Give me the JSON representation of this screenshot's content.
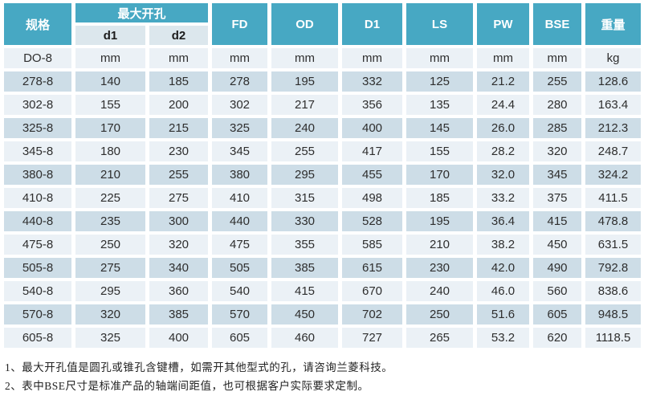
{
  "colors": {
    "header_bg": "#47A8C3",
    "header_text": "#FFFFFF",
    "subheader_bg": "#DCE7ED",
    "row_light": "#EBF1F6",
    "row_dark": "#CDDDE7",
    "cell_text": "#2E2E2E",
    "note_text": "#222222"
  },
  "table": {
    "header": {
      "spec": "规格",
      "max_opening": "最大开孔",
      "sub_d1": "d1",
      "sub_d2": "d2",
      "merged_cols": [
        "FD",
        "OD",
        "D1",
        "LS",
        "PW",
        "BSE",
        "重量"
      ]
    },
    "units_row": [
      "DO-8",
      "mm",
      "mm",
      "mm",
      "mm",
      "mm",
      "mm",
      "mm",
      "mm",
      "kg"
    ],
    "rows": [
      [
        "278-8",
        "140",
        "185",
        "278",
        "195",
        "332",
        "125",
        "21.2",
        "255",
        "128.6"
      ],
      [
        "302-8",
        "155",
        "200",
        "302",
        "217",
        "356",
        "135",
        "24.4",
        "280",
        "163.4"
      ],
      [
        "325-8",
        "170",
        "215",
        "325",
        "240",
        "400",
        "145",
        "26.0",
        "285",
        "212.3"
      ],
      [
        "345-8",
        "180",
        "230",
        "345",
        "255",
        "417",
        "155",
        "28.2",
        "320",
        "248.7"
      ],
      [
        "380-8",
        "210",
        "255",
        "380",
        "295",
        "455",
        "170",
        "32.0",
        "345",
        "324.2"
      ],
      [
        "410-8",
        "225",
        "275",
        "410",
        "315",
        "498",
        "185",
        "33.2",
        "375",
        "411.5"
      ],
      [
        "440-8",
        "235",
        "300",
        "440",
        "330",
        "528",
        "195",
        "36.4",
        "415",
        "478.8"
      ],
      [
        "475-8",
        "250",
        "320",
        "475",
        "355",
        "585",
        "210",
        "38.2",
        "450",
        "631.5"
      ],
      [
        "505-8",
        "275",
        "340",
        "505",
        "385",
        "615",
        "230",
        "42.0",
        "490",
        "792.8"
      ],
      [
        "540-8",
        "295",
        "360",
        "540",
        "415",
        "670",
        "240",
        "46.0",
        "560",
        "838.6"
      ],
      [
        "570-8",
        "320",
        "385",
        "570",
        "450",
        "702",
        "250",
        "51.6",
        "605",
        "948.5"
      ],
      [
        "605-8",
        "325",
        "400",
        "605",
        "460",
        "727",
        "265",
        "53.2",
        "620",
        "1118.5"
      ]
    ]
  },
  "notes": [
    "1、最大开孔值是圆孔或锥孔含键槽，如需开其他型式的孔，请咨询兰菱科技。",
    "2、表中BSE尺寸是标准产品的轴端间距值，也可根据客户实际要求定制。"
  ]
}
